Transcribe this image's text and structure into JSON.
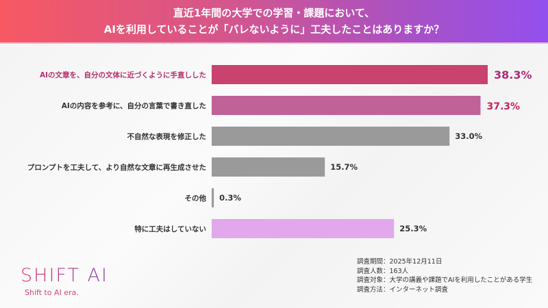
{
  "header": {
    "title_line1": "直近1年間の大学での学習・課題において、",
    "title_line2": "AIを利用していることが「バレないように」工夫したことはありますか？"
  },
  "chart_data": {
    "type": "bar",
    "orientation": "horizontal",
    "categories": [
      "AIの文章を、自分の文体に近づくように手直しした",
      "AIの内容を参考に、自分の言葉で書き直した",
      "不自然な表現を修正した",
      "プロンプトを工夫して、より自然な文章に再生成させた",
      "その他",
      "特に工夫はしていない"
    ],
    "values": [
      38.3,
      37.3,
      33.0,
      15.7,
      0.3,
      25.3
    ],
    "value_labels": [
      "38.3%",
      "37.3%",
      "33.0%",
      "15.7%",
      "0.3%",
      "25.3%"
    ],
    "unit": "%",
    "colors": [
      "#c9436f",
      "#c06198",
      "#9a9a9a",
      "#9a9a9a",
      "#9a9a9a",
      "#e1a8ec"
    ],
    "label_colors": [
      "#b5306e",
      "#333333",
      "#333333",
      "#333333",
      "#333333",
      "#333333"
    ],
    "value_colors": [
      "#b0287a",
      "#c8205f",
      "#333333",
      "#333333",
      "#333333",
      "#333333"
    ],
    "grid": false,
    "legend": "none"
  },
  "logo": {
    "name": "SHIFT AI",
    "tagline": "Shift to AI era."
  },
  "notes": [
    "調査期間：2025年12月11日",
    "調査人数：163人",
    "調査対象：大学の講義や課題でAIを利用したことがある学生",
    "調査方法：インターネット調査"
  ]
}
